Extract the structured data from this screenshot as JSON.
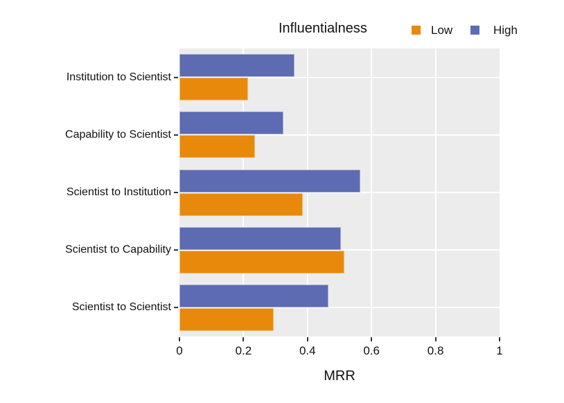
{
  "chart_data": {
    "type": "bar",
    "orientation": "horizontal",
    "categories": [
      "Institution to Scientist",
      "Capability to Scientist",
      "Scientist to Institution",
      "Scientist to Capability",
      "Scientist to Scientist"
    ],
    "series": [
      {
        "name": "High",
        "color": "#5c6bb2",
        "values": [
          0.36,
          0.325,
          0.565,
          0.505,
          0.465
        ]
      },
      {
        "name": "Low",
        "color": "#e8890c",
        "values": [
          0.215,
          0.235,
          0.385,
          0.515,
          0.295
        ]
      }
    ],
    "legend": {
      "title": "Influentialness",
      "position": "top",
      "entries": [
        {
          "label": "Low",
          "color": "#e8890c"
        },
        {
          "label": "High",
          "color": "#5c6bb2"
        }
      ]
    },
    "xlabel": "MRR",
    "ylabel": "",
    "xlim": [
      0,
      1
    ],
    "x_ticks": [
      0,
      0.2,
      0.4,
      0.6,
      0.8,
      1
    ],
    "x_tick_labels": [
      "0",
      "0.2",
      "0.4",
      "0.6",
      "0.8",
      "1"
    ],
    "grid": "major gridlines only, white on grey panel",
    "panel_bg": "#ececec",
    "background": "#ffffff"
  }
}
